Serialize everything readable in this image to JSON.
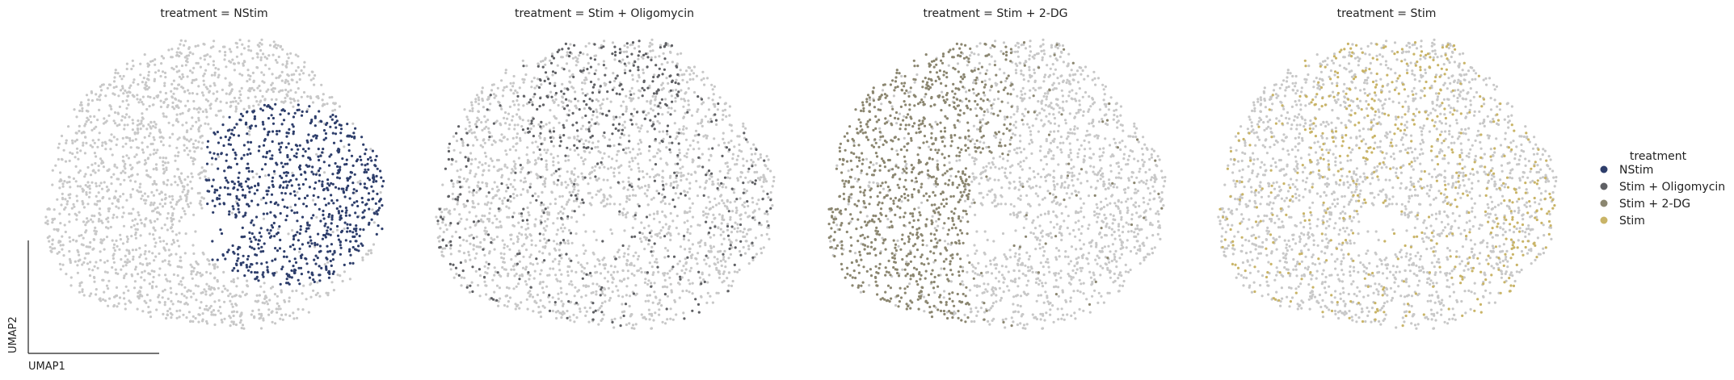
{
  "chart_data": {
    "type": "scatter",
    "embedding": "UMAP",
    "xlabel": "UMAP1",
    "ylabel": "UMAP2",
    "background_color": "#c8c8c8",
    "panels": [
      {
        "title": "treatment = NStim",
        "highlight": "NStim",
        "region": "right"
      },
      {
        "title": "treatment = Stim + Oligomycin",
        "highlight": "Stim + Oligomycin",
        "region": "scattered-top-center"
      },
      {
        "title": "treatment = Stim + 2-DG",
        "highlight": "Stim + 2-DG",
        "region": "left"
      },
      {
        "title": "treatment = Stim",
        "highlight": "Stim",
        "region": "scattered-top"
      }
    ],
    "legend": {
      "title": "treatment",
      "placement": "right",
      "entries": [
        {
          "label": "NStim",
          "color": "#2e3e6b"
        },
        {
          "label": "Stim + Oligomycin",
          "color": "#5f6064"
        },
        {
          "label": "Stim + 2-DG",
          "color": "#8b8670"
        },
        {
          "label": "Stim",
          "color": "#c9b467"
        }
      ]
    }
  }
}
